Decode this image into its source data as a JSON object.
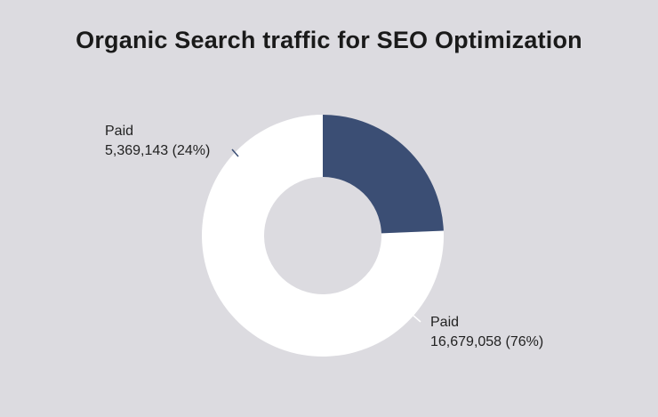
{
  "chart_data": {
    "type": "pie",
    "variant": "donut",
    "title": "Organic Search traffic for SEO Optimization",
    "slices": [
      {
        "label": "Paid",
        "value": 16679058,
        "value_text": "16,679,058 (76%)",
        "percent": 76,
        "color": "#ffffff"
      },
      {
        "label": "Paid",
        "value": 5369143,
        "value_text": "5,369,143 (24%)",
        "percent": 24,
        "color": "#3b4e74"
      }
    ],
    "legend": "none",
    "background": "#dcdbe0"
  }
}
